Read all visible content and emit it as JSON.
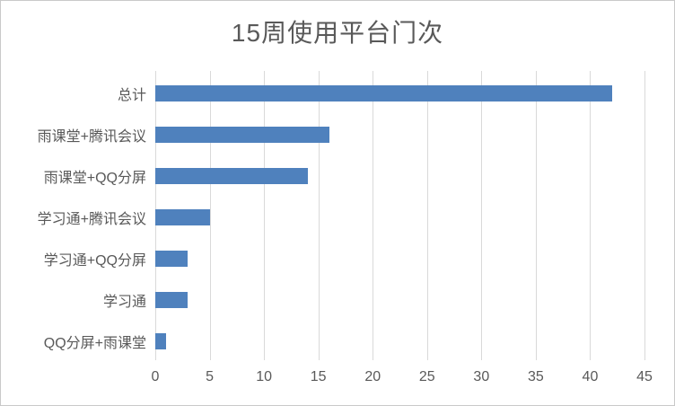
{
  "chart_data": {
    "type": "bar",
    "orientation": "horizontal",
    "title": "15周使用平台门次",
    "categories": [
      "总计",
      "雨课堂+腾讯会议",
      "雨课堂+QQ分屏",
      "学习通+腾讯会议",
      "学习通+QQ分屏",
      "学习通",
      "QQ分屏+雨课堂"
    ],
    "values": [
      42,
      16,
      14,
      5,
      3,
      3,
      1
    ],
    "xlabel": "",
    "ylabel": "",
    "xlim": [
      0,
      45
    ],
    "xticks": [
      0,
      5,
      10,
      15,
      20,
      25,
      30,
      35,
      40,
      45
    ],
    "grid": "vertical",
    "legend": "none",
    "colors": {
      "bar": "#4f81bd",
      "gridline": "#d9d9d9",
      "label": "#595959",
      "title": "#595959",
      "border": "#c9c9c9",
      "background": "#ffffff"
    }
  }
}
